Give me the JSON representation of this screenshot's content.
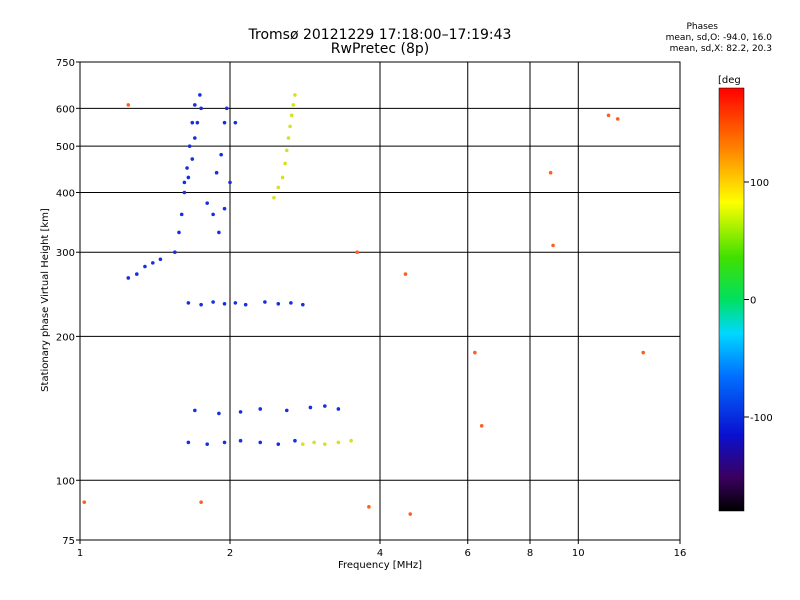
{
  "header": {
    "title": "Tromsø 20121229 17:18:00–17:19:43",
    "subtitle": "RwPretec (8p)"
  },
  "phases": {
    "heading": "Phases",
    "line1": "mean, sd,O: -94.0, 16.0",
    "line2": "mean, sd,X: 82.2, 20.3"
  },
  "colorbar": {
    "unit_label": "[deg",
    "tick_labels": [
      "100",
      "0",
      "-100"
    ],
    "tick_values": [
      100,
      0,
      -100
    ],
    "range": [
      -180,
      180
    ]
  },
  "chart_data": {
    "type": "scatter",
    "title": "Tromsø 20121229 17:18:00–17:19:43",
    "subtitle": "RwPretec (8p)",
    "xlabel": "Frequency [MHz]",
    "ylabel": "Stationary phase Virtual Height [km]",
    "xscale": "log",
    "yscale": "log",
    "xlim": [
      1,
      16
    ],
    "ylim": [
      75,
      750
    ],
    "x_ticks": [
      1,
      2,
      4,
      6,
      8,
      10,
      16
    ],
    "x_tick_labels": [
      "1",
      "2",
      "4",
      "6",
      "8",
      "10",
      "16"
    ],
    "y_ticks": [
      75,
      100,
      200,
      300,
      400,
      500,
      600,
      750
    ],
    "y_tick_labels": [
      "75",
      "100",
      "200",
      "300",
      "400",
      "500",
      "600",
      "750"
    ],
    "grid": true,
    "color_meaning": "phase [deg]",
    "series": [
      {
        "region": "F-trace O-mode (blue)",
        "color": "#1530e0",
        "points": [
          [
            1.55,
            300
          ],
          [
            1.58,
            330
          ],
          [
            1.6,
            360
          ],
          [
            1.62,
            400
          ],
          [
            1.65,
            430
          ],
          [
            1.68,
            470
          ],
          [
            1.7,
            520
          ],
          [
            1.72,
            560
          ],
          [
            1.75,
            600
          ],
          [
            1.74,
            640
          ],
          [
            1.7,
            610
          ],
          [
            1.68,
            560
          ],
          [
            1.66,
            500
          ],
          [
            1.64,
            450
          ],
          [
            1.62,
            420
          ],
          [
            1.8,
            380
          ],
          [
            1.85,
            360
          ],
          [
            1.9,
            330
          ],
          [
            1.95,
            370
          ],
          [
            2.0,
            420
          ],
          [
            1.45,
            290
          ],
          [
            1.4,
            285
          ],
          [
            1.35,
            280
          ],
          [
            1.3,
            270
          ],
          [
            1.25,
            265
          ],
          [
            1.88,
            440
          ],
          [
            1.92,
            480
          ],
          [
            1.95,
            560
          ],
          [
            1.97,
            600
          ],
          [
            2.05,
            560
          ]
        ]
      },
      {
        "region": "F-trace X-mode (yellow)",
        "color": "#d8e020",
        "points": [
          [
            2.45,
            390
          ],
          [
            2.5,
            410
          ],
          [
            2.55,
            430
          ],
          [
            2.58,
            460
          ],
          [
            2.6,
            490
          ],
          [
            2.62,
            520
          ],
          [
            2.64,
            550
          ],
          [
            2.66,
            580
          ],
          [
            2.68,
            610
          ],
          [
            2.7,
            640
          ]
        ]
      },
      {
        "region": "E-layer ~235 km (blue)",
        "color": "#1530e0",
        "points": [
          [
            1.65,
            235
          ],
          [
            1.75,
            233
          ],
          [
            1.85,
            236
          ],
          [
            1.95,
            234
          ],
          [
            2.05,
            235
          ],
          [
            2.15,
            233
          ],
          [
            2.35,
            236
          ],
          [
            2.5,
            234
          ],
          [
            2.65,
            235
          ],
          [
            2.8,
            233
          ]
        ]
      },
      {
        "region": "E-layer ~140 km (blue)",
        "color": "#1530e0",
        "points": [
          [
            1.7,
            140
          ],
          [
            1.9,
            138
          ],
          [
            2.1,
            139
          ],
          [
            2.3,
            141
          ],
          [
            2.6,
            140
          ],
          [
            2.9,
            142
          ],
          [
            3.1,
            143
          ],
          [
            3.3,
            141
          ]
        ]
      },
      {
        "region": "E-layer ~120 km (blue)",
        "color": "#1530e0",
        "points": [
          [
            1.65,
            120
          ],
          [
            1.8,
            119
          ],
          [
            1.95,
            120
          ],
          [
            2.1,
            121
          ],
          [
            2.3,
            120
          ],
          [
            2.5,
            119
          ],
          [
            2.7,
            121
          ]
        ]
      },
      {
        "region": "E-layer ~120 km (yellow)",
        "color": "#d8e020",
        "points": [
          [
            2.8,
            119
          ],
          [
            2.95,
            120
          ],
          [
            3.1,
            119
          ],
          [
            3.3,
            120
          ],
          [
            3.5,
            121
          ]
        ]
      },
      {
        "region": "scattered",
        "color": "#ff6020",
        "points": [
          [
            1.02,
            90
          ],
          [
            1.25,
            610
          ],
          [
            1.75,
            90
          ],
          [
            3.6,
            300
          ],
          [
            3.8,
            88
          ],
          [
            4.5,
            270
          ],
          [
            4.6,
            85
          ],
          [
            6.2,
            185
          ],
          [
            6.4,
            130
          ],
          [
            8.8,
            440
          ],
          [
            8.9,
            310
          ],
          [
            11.5,
            580
          ],
          [
            12.0,
            570
          ],
          [
            13.5,
            185
          ]
        ]
      }
    ]
  }
}
